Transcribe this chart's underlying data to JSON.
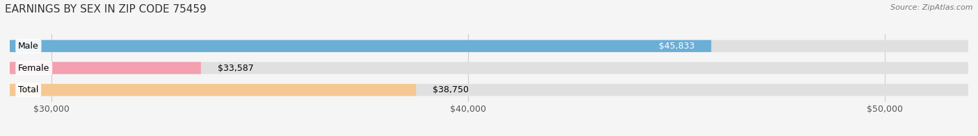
{
  "title": "EARNINGS BY SEX IN ZIP CODE 75459",
  "source": "Source: ZipAtlas.com",
  "categories": [
    "Male",
    "Female",
    "Total"
  ],
  "values": [
    45833,
    33587,
    38750
  ],
  "bar_colors": [
    "#6baed6",
    "#f4a0b0",
    "#f5c891"
  ],
  "value_labels": [
    "$45,833",
    "$33,587",
    "$38,750"
  ],
  "value_label_colors": [
    "white",
    "black",
    "black"
  ],
  "xmin": 29000,
  "xmax": 52000,
  "xticks": [
    30000,
    40000,
    50000
  ],
  "xtick_labels": [
    "$30,000",
    "$40,000",
    "$50,000"
  ],
  "bar_height": 0.55,
  "title_fontsize": 11,
  "tick_fontsize": 9,
  "label_fontsize": 9,
  "value_fontsize": 9,
  "background_color": "#f5f5f5",
  "bar_track_color": "#e0e0e0",
  "grid_color": "#cccccc"
}
